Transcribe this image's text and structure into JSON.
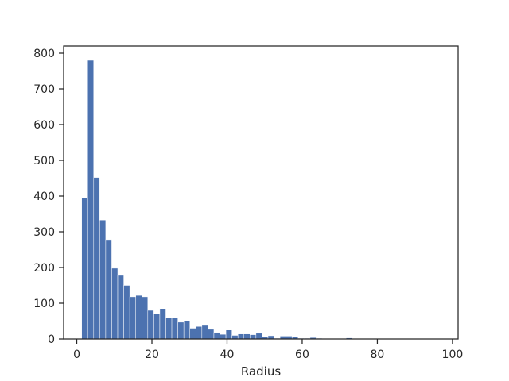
{
  "chart_data": {
    "type": "bar",
    "xlabel": "Radius",
    "ylabel": "",
    "title": "",
    "xlim": [
      -3.5,
      101.5
    ],
    "ylim": [
      0,
      820
    ],
    "x_ticks": [
      0,
      20,
      40,
      60,
      80,
      100
    ],
    "x_tick_labels": [
      "0",
      "20",
      "40",
      "60",
      "80",
      "100"
    ],
    "y_ticks": [
      0,
      100,
      200,
      300,
      400,
      500,
      600,
      700,
      800
    ],
    "y_tick_labels": [
      "0",
      "100",
      "200",
      "300",
      "400",
      "500",
      "600",
      "700",
      "800"
    ],
    "bar_color": "#4c72b0",
    "grid": false,
    "bin_start": 1.3,
    "bin_width": 1.6,
    "counts": [
      395,
      780,
      452,
      333,
      278,
      198,
      178,
      150,
      118,
      122,
      118,
      80,
      70,
      85,
      60,
      60,
      47,
      50,
      30,
      35,
      38,
      27,
      18,
      13,
      25,
      10,
      14,
      14,
      12,
      16,
      5,
      9,
      2,
      8,
      8,
      5,
      2,
      2,
      4,
      2,
      0,
      0,
      0,
      0,
      3,
      0,
      0,
      0,
      0,
      0,
      0,
      0,
      0,
      0,
      0,
      0,
      0,
      0,
      0,
      0
    ]
  }
}
